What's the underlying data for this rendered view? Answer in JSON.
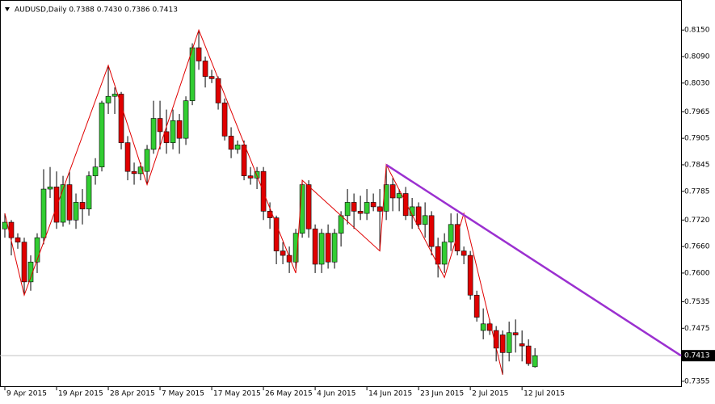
{
  "chart_data": {
    "type": "candlestick",
    "title": "AUDUSD,Daily  0.7388 0.7430 0.7386 0.7413",
    "up_color": "#32cd32",
    "down_color": "#e00000",
    "ohlc": [
      [
        0.77,
        0.7735,
        0.768,
        0.7715
      ],
      [
        0.7715,
        0.772,
        0.764,
        0.768
      ],
      [
        0.768,
        0.769,
        0.7655,
        0.767
      ],
      [
        0.767,
        0.768,
        0.755,
        0.758
      ],
      [
        0.758,
        0.764,
        0.756,
        0.7625
      ],
      [
        0.7625,
        0.769,
        0.76,
        0.768
      ],
      [
        0.768,
        0.7835,
        0.7665,
        0.779
      ],
      [
        0.779,
        0.784,
        0.777,
        0.7795
      ],
      [
        0.7795,
        0.783,
        0.77,
        0.7715
      ],
      [
        0.7715,
        0.782,
        0.7705,
        0.78
      ],
      [
        0.78,
        0.783,
        0.771,
        0.772
      ],
      [
        0.772,
        0.778,
        0.77,
        0.776
      ],
      [
        0.776,
        0.779,
        0.771,
        0.7745
      ],
      [
        0.7745,
        0.783,
        0.773,
        0.782
      ],
      [
        0.782,
        0.786,
        0.78,
        0.784
      ],
      [
        0.784,
        0.799,
        0.783,
        0.7985
      ],
      [
        0.7985,
        0.807,
        0.796,
        0.8
      ],
      [
        0.8,
        0.802,
        0.796,
        0.8005
      ],
      [
        0.8005,
        0.801,
        0.788,
        0.7895
      ],
      [
        0.7895,
        0.791,
        0.781,
        0.783
      ],
      [
        0.783,
        0.785,
        0.78,
        0.7825
      ],
      [
        0.7825,
        0.785,
        0.781,
        0.784
      ],
      [
        0.783,
        0.789,
        0.78,
        0.788
      ],
      [
        0.788,
        0.799,
        0.787,
        0.795
      ],
      [
        0.795,
        0.799,
        0.788,
        0.792
      ],
      [
        0.792,
        0.797,
        0.787,
        0.7895
      ],
      [
        0.7895,
        0.797,
        0.788,
        0.7945
      ],
      [
        0.7945,
        0.796,
        0.787,
        0.7905
      ],
      [
        0.7905,
        0.8,
        0.789,
        0.799
      ],
      [
        0.799,
        0.812,
        0.798,
        0.811
      ],
      [
        0.811,
        0.815,
        0.806,
        0.808
      ],
      [
        0.808,
        0.809,
        0.802,
        0.8045
      ],
      [
        0.8045,
        0.806,
        0.803,
        0.804
      ],
      [
        0.804,
        0.8045,
        0.797,
        0.7985
      ],
      [
        0.7985,
        0.7995,
        0.79,
        0.791
      ],
      [
        0.791,
        0.793,
        0.786,
        0.788
      ],
      [
        0.788,
        0.79,
        0.787,
        0.789
      ],
      [
        0.789,
        0.79,
        0.781,
        0.782
      ],
      [
        0.782,
        0.784,
        0.78,
        0.7815
      ],
      [
        0.7815,
        0.784,
        0.779,
        0.783
      ],
      [
        0.783,
        0.784,
        0.772,
        0.774
      ],
      [
        0.774,
        0.776,
        0.77,
        0.7725
      ],
      [
        0.7725,
        0.773,
        0.762,
        0.765
      ],
      [
        0.765,
        0.767,
        0.762,
        0.764
      ],
      [
        0.764,
        0.766,
        0.76,
        0.7625
      ],
      [
        0.7625,
        0.77,
        0.761,
        0.769
      ],
      [
        0.769,
        0.781,
        0.768,
        0.78
      ],
      [
        0.78,
        0.781,
        0.768,
        0.77
      ],
      [
        0.77,
        0.771,
        0.76,
        0.762
      ],
      [
        0.762,
        0.77,
        0.76,
        0.769
      ],
      [
        0.769,
        0.771,
        0.761,
        0.7625
      ],
      [
        0.7625,
        0.77,
        0.761,
        0.769
      ],
      [
        0.769,
        0.774,
        0.766,
        0.773
      ],
      [
        0.773,
        0.779,
        0.771,
        0.776
      ],
      [
        0.776,
        0.778,
        0.77,
        0.774
      ],
      [
        0.774,
        0.7775,
        0.772,
        0.7735
      ],
      [
        0.7735,
        0.779,
        0.772,
        0.776
      ],
      [
        0.776,
        0.778,
        0.774,
        0.775
      ],
      [
        0.775,
        0.779,
        0.765,
        0.774
      ],
      [
        0.774,
        0.7845,
        0.772,
        0.78
      ],
      [
        0.78,
        0.7815,
        0.774,
        0.777
      ],
      [
        0.777,
        0.779,
        0.774,
        0.778
      ],
      [
        0.778,
        0.7795,
        0.772,
        0.773
      ],
      [
        0.773,
        0.777,
        0.77,
        0.775
      ],
      [
        0.775,
        0.776,
        0.77,
        0.771
      ],
      [
        0.771,
        0.776,
        0.768,
        0.773
      ],
      [
        0.773,
        0.774,
        0.764,
        0.766
      ],
      [
        0.766,
        0.768,
        0.759,
        0.762
      ],
      [
        0.762,
        0.769,
        0.76,
        0.767
      ],
      [
        0.767,
        0.7735,
        0.765,
        0.771
      ],
      [
        0.771,
        0.7735,
        0.764,
        0.765
      ],
      [
        0.765,
        0.766,
        0.762,
        0.764
      ],
      [
        0.764,
        0.765,
        0.754,
        0.755
      ],
      [
        0.755,
        0.756,
        0.749,
        0.75
      ],
      [
        0.747,
        0.752,
        0.745,
        0.7485
      ],
      [
        0.7485,
        0.7495,
        0.746,
        0.747
      ],
      [
        0.747,
        0.748,
        0.74,
        0.743
      ],
      [
        0.746,
        0.747,
        0.737,
        0.742
      ],
      [
        0.742,
        0.749,
        0.74,
        0.7465
      ],
      [
        0.7465,
        0.7495,
        0.742,
        0.746
      ],
      [
        0.744,
        0.747,
        0.74,
        0.7435
      ],
      [
        0.7435,
        0.745,
        0.739,
        0.7395
      ],
      [
        0.7388,
        0.743,
        0.7386,
        0.7413
      ]
    ],
    "zigzag": {
      "x": [
        0,
        3,
        16,
        22,
        30,
        45,
        46,
        58,
        59,
        68,
        71,
        77
      ],
      "y": [
        0.7735,
        0.755,
        0.807,
        0.78,
        0.815,
        0.76,
        0.781,
        0.765,
        0.7845,
        0.759,
        0.7735,
        0.737
      ],
      "color": "#e00000"
    },
    "trendline": {
      "x": [
        59,
        104.6
      ],
      "y": [
        0.7845,
        0.7413
      ],
      "color": "#9b30d0"
    },
    "current_price": {
      "value": 0.7413,
      "label": "0.7413"
    },
    "xlim": [
      -0.75,
      104.6
    ],
    "ylim": [
      0.7342,
      0.8218
    ],
    "xticks": [
      {
        "value": 0,
        "label": "9 Apr 2015"
      },
      {
        "value": 8,
        "label": "19 Apr 2015"
      },
      {
        "value": 16,
        "label": "28 Apr 2015"
      },
      {
        "value": 24,
        "label": "7 May 2015"
      },
      {
        "value": 32,
        "label": "17 May 2015"
      },
      {
        "value": 40,
        "label": "26 May 2015"
      },
      {
        "value": 48,
        "label": "4 Jun 2015"
      },
      {
        "value": 56,
        "label": "14 Jun 2015"
      },
      {
        "value": 64,
        "label": "23 Jun 2015"
      },
      {
        "value": 72,
        "label": "2 Jul 2015"
      },
      {
        "value": 80,
        "label": "12 Jul 2015"
      }
    ],
    "yticks": [
      {
        "value": 0.815,
        "label": "0.8150"
      },
      {
        "value": 0.809,
        "label": "0.8090"
      },
      {
        "value": 0.803,
        "label": "0.8030"
      },
      {
        "value": 0.7965,
        "label": "0.7965"
      },
      {
        "value": 0.7905,
        "label": "0.7905"
      },
      {
        "value": 0.7845,
        "label": "0.7845"
      },
      {
        "value": 0.7785,
        "label": "0.7785"
      },
      {
        "value": 0.772,
        "label": "0.7720"
      },
      {
        "value": 0.766,
        "label": "0.7660"
      },
      {
        "value": 0.76,
        "label": "0.7600"
      },
      {
        "value": 0.7535,
        "label": "0.7535"
      },
      {
        "value": 0.7475,
        "label": "0.7475"
      },
      {
        "value": 0.7355,
        "label": "0.7355"
      }
    ]
  }
}
